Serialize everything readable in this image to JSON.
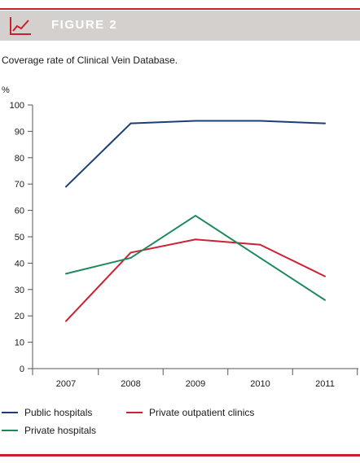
{
  "header": {
    "label": "FIGURE 2",
    "icon": "line-chart-icon"
  },
  "caption": "Coverage rate of Clinical Vein Database.",
  "colors": {
    "accent": "#c8202f",
    "header_bg": "#d4d0cd",
    "public": "#1b3f73",
    "outpatient": "#cc2233",
    "private": "#1e8a5a"
  },
  "chart_data": {
    "type": "line",
    "title": "",
    "xlabel": "",
    "ylabel": "%",
    "x": [
      "2007",
      "2008",
      "2009",
      "2010",
      "2011"
    ],
    "ylim": [
      0,
      100
    ],
    "yticks": [
      0,
      10,
      20,
      30,
      40,
      50,
      60,
      70,
      80,
      90,
      100
    ],
    "grid": false,
    "legend_position": "bottom",
    "series": [
      {
        "name": "Public hospitals",
        "color": "#1b3f73",
        "values": [
          69,
          93,
          94,
          94,
          93
        ]
      },
      {
        "name": "Private outpatient clinics",
        "color": "#cc2233",
        "values": [
          18,
          44,
          49,
          47,
          35
        ]
      },
      {
        "name": "Private hospitals",
        "color": "#1e8a5a",
        "values": [
          36,
          42,
          58,
          42,
          26
        ]
      }
    ]
  }
}
